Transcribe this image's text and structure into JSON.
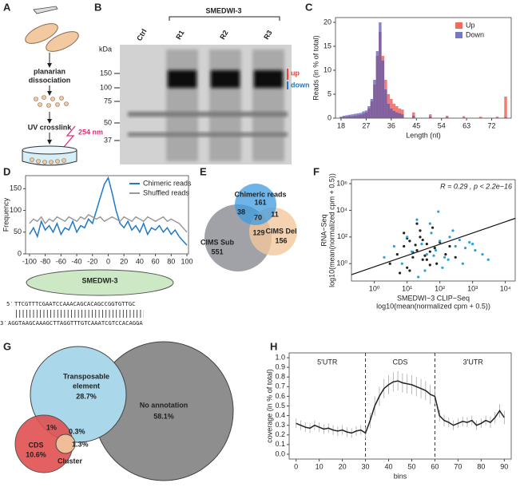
{
  "chart_data": [
    {
      "type": "bar",
      "y_label": "Reads (in % of total)",
      "x_label": "Length (nt)",
      "x": [
        18,
        19,
        20,
        21,
        22,
        23,
        24,
        25,
        26,
        27,
        28,
        29,
        30,
        31,
        32,
        33,
        34,
        35,
        36,
        37,
        38,
        39,
        40,
        44,
        50,
        56,
        62,
        68,
        74,
        77
      ],
      "series": [
        {
          "name": "Up",
          "color": "#e8463a",
          "values": [
            0.2,
            0.3,
            0.3,
            0.4,
            0.4,
            0.5,
            0.6,
            0.7,
            0.9,
            1.2,
            2,
            3.5,
            7,
            13,
            18,
            13,
            8,
            5,
            4,
            3,
            2.5,
            2,
            1.8,
            1.2,
            0.8,
            0.5,
            0.4,
            0.3,
            0.3,
            4.5
          ]
        },
        {
          "name": "Down",
          "color": "#5456b0",
          "values": [
            0.3,
            0.5,
            0.6,
            0.7,
            0.8,
            0.9,
            1.0,
            1.1,
            1.4,
            1.6,
            2.5,
            4,
            8,
            14,
            20,
            12,
            6,
            3,
            2,
            1.5,
            1.2,
            1.0,
            0.8,
            0.5,
            0.3,
            0.2,
            0.1,
            0.1,
            0.1,
            0.2
          ]
        }
      ],
      "xlim": [
        16,
        79
      ],
      "xticks": [
        18,
        27,
        36,
        45,
        54,
        63,
        72
      ],
      "ylim": [
        0,
        21
      ],
      "yticks": [
        0,
        5,
        10,
        15,
        20
      ],
      "legend": "top-right"
    },
    {
      "type": "line",
      "y_label": "Frequency",
      "x": [
        -100,
        -95,
        -90,
        -85,
        -80,
        -75,
        -70,
        -65,
        -60,
        -55,
        -50,
        -45,
        -40,
        -35,
        -30,
        -25,
        -20,
        -15,
        -10,
        -5,
        0,
        5,
        10,
        15,
        20,
        25,
        30,
        35,
        40,
        45,
        50,
        55,
        60,
        65,
        70,
        75,
        80,
        85,
        90,
        95,
        100
      ],
      "series": [
        {
          "name": "Chimeric reads",
          "color": "#1f78c8",
          "values": [
            45,
            60,
            40,
            75,
            55,
            65,
            50,
            70,
            45,
            60,
            55,
            75,
            50,
            65,
            60,
            80,
            70,
            100,
            130,
            160,
            175,
            140,
            100,
            70,
            60,
            75,
            55,
            65,
            50,
            70,
            45,
            60,
            55,
            65,
            50,
            60,
            45,
            55,
            40,
            30,
            20
          ]
        },
        {
          "name": "Shuffled reads",
          "color": "#9a9a9a",
          "values": [
            70,
            80,
            75,
            85,
            70,
            80,
            75,
            85,
            80,
            75,
            85,
            80,
            75,
            85,
            80,
            90,
            85,
            80,
            85,
            75,
            80,
            85,
            80,
            75,
            85,
            80,
            75,
            85,
            80,
            75,
            85,
            80,
            75,
            80,
            85,
            75,
            80,
            75,
            70,
            60,
            50
          ]
        }
      ],
      "xlim": [
        -105,
        102
      ],
      "xticks": [
        -100,
        -80,
        -60,
        -40,
        -20,
        0,
        20,
        40,
        60,
        80,
        100
      ],
      "ylim": [
        0,
        180
      ],
      "yticks": [
        0,
        50,
        100,
        150
      ],
      "legend": "top-right"
    },
    {
      "type": "scatter",
      "x_log": true,
      "y_log": true,
      "y_label": [
        "RNA−Seq",
        "log10(mean(normalized cpm + 0.5))"
      ],
      "x_label": [
        "SMEDWI−3 CLIP−Seq",
        "log10(mean(normalized cpm + 0.5))"
      ],
      "annotation": "R = 0.29 , p < 2.2e−16",
      "series": [
        {
          "color": "#222222",
          "x": [
            3,
            5,
            8,
            10,
            12,
            15,
            20,
            25,
            30,
            40,
            50,
            60,
            80,
            100,
            150,
            200,
            300,
            8,
            12,
            20,
            30,
            50,
            70,
            15,
            25,
            40,
            6,
            10,
            18,
            35
          ],
          "values": [
            1,
            5,
            20,
            0.5,
            50,
            3,
            10,
            100,
            2,
            30,
            8,
            500,
            1,
            40,
            5,
            20,
            3,
            200,
            0.3,
            1000,
            60,
            0.8,
            15,
            7,
            300,
            2,
            0.2,
            80,
            25,
            4
          ]
        },
        {
          "color": "#29a3d6",
          "x": [
            2,
            4,
            7,
            10,
            14,
            20,
            28,
            40,
            55,
            75,
            100,
            140,
            200,
            300,
            500,
            800,
            1200,
            2000,
            3000,
            50,
            120,
            250,
            600,
            35,
            90,
            180,
            400,
            1000,
            22,
            65
          ],
          "values": [
            3,
            20,
            1,
            100,
            8,
            2000,
            30,
            5,
            200,
            10,
            50,
            3,
            100,
            20,
            1,
            40,
            10,
            5,
            2,
            1000,
            0.5,
            300,
            15,
            0.3,
            8000,
            2,
            60,
            30,
            0.1,
            4
          ]
        }
      ],
      "trendline": {
        "x": [
          0.2,
          20000
        ],
        "y": [
          0.15,
          2500
        ]
      },
      "xlim": [
        0.2,
        20000
      ],
      "xticks": [
        {
          "value": 1,
          "label": "10⁰"
        },
        {
          "value": 10,
          "label": "10¹"
        },
        {
          "value": 100,
          "label": "10²"
        },
        {
          "value": 1000,
          "label": "10³"
        },
        {
          "value": 10000,
          "label": "10⁴"
        }
      ],
      "ylim": [
        0.05,
        2000000
      ],
      "yticks": [
        {
          "value": 1,
          "label": "10⁰"
        },
        {
          "value": 100,
          "label": "10²"
        },
        {
          "value": 10000,
          "label": "10⁴"
        },
        {
          "value": 1000000,
          "label": "10⁶"
        }
      ]
    },
    {
      "type": "line",
      "y_label": "coverage (in % of total)",
      "x_label": "bins",
      "x": [
        0,
        2,
        4,
        6,
        8,
        10,
        12,
        14,
        16,
        18,
        20,
        22,
        24,
        26,
        28,
        30,
        32,
        34,
        36,
        38,
        40,
        42,
        44,
        46,
        48,
        50,
        52,
        54,
        56,
        58,
        60,
        62,
        64,
        66,
        68,
        70,
        72,
        74,
        76,
        78,
        80,
        82,
        84,
        86,
        88,
        90
      ],
      "series": [
        {
          "color": "#222222",
          "values": [
            0.32,
            0.3,
            0.28,
            0.27,
            0.3,
            0.28,
            0.26,
            0.27,
            0.25,
            0.24,
            0.25,
            0.23,
            0.22,
            0.24,
            0.25,
            0.22,
            0.35,
            0.5,
            0.6,
            0.68,
            0.72,
            0.75,
            0.76,
            0.74,
            0.73,
            0.72,
            0.7,
            0.68,
            0.66,
            0.62,
            0.6,
            0.4,
            0.35,
            0.33,
            0.3,
            0.32,
            0.34,
            0.33,
            0.35,
            0.3,
            0.32,
            0.35,
            0.33,
            0.38,
            0.45,
            0.38
          ],
          "errors": [
            0.05,
            0.05,
            0.05,
            0.05,
            0.05,
            0.05,
            0.05,
            0.05,
            0.05,
            0.05,
            0.05,
            0.05,
            0.05,
            0.05,
            0.05,
            0.06,
            0.08,
            0.1,
            0.1,
            0.1,
            0.1,
            0.1,
            0.1,
            0.1,
            0.1,
            0.1,
            0.1,
            0.1,
            0.1,
            0.1,
            0.08,
            0.06,
            0.06,
            0.05,
            0.05,
            0.05,
            0.05,
            0.05,
            0.05,
            0.05,
            0.05,
            0.05,
            0.06,
            0.06,
            0.07,
            0.07
          ]
        }
      ],
      "dividers": [
        30,
        60
      ],
      "regions": [
        "5'UTR",
        "CDS",
        "3'UTR"
      ],
      "xlim": [
        -3,
        93
      ],
      "xticks": [
        0,
        10,
        20,
        30,
        40,
        50,
        60,
        70,
        80,
        90
      ],
      "ylim": [
        -0.05,
        1.05
      ],
      "yticks": [
        {
          "value": 0,
          "label": "0.0"
        },
        0.1,
        0.2,
        0.3,
        0.4,
        0.5,
        0.6,
        0.7,
        0.8,
        0.9,
        {
          "value": 1,
          "label": "1.0"
        }
      ]
    }
  ],
  "panels": {
    "letters": [
      "A",
      "B",
      "C",
      "D",
      "E",
      "F",
      "G",
      "H"
    ],
    "A": {
      "step1": [
        "planarian",
        "dissociation"
      ],
      "step2": "UV crosslink",
      "wavelength": "254 nm"
    },
    "B": {
      "protein": "SMEDWI-3",
      "unit": "kDa",
      "lanes": [
        "Ctrl",
        "R1",
        "R2",
        "R3"
      ],
      "markers": [
        "150",
        "100",
        "75",
        "50",
        "37"
      ],
      "up": "up",
      "down": "down"
    },
    "D": {
      "protein": "SMEDWI-3",
      "top_end": "5′",
      "top": "TTCGTTTCGAATCCAAACAGCACAGCCGGTGTTGC",
      "bottom_end": "3′",
      "bottom": "AGGTAAGCAAAGCTTAGGTTTGTCAAATCGTCCACAGGA"
    },
    "E": {
      "sets": [
        "Chimeric reads",
        "CIMS Sub",
        "CIMS Del"
      ],
      "only": [
        "161",
        "551",
        "156"
      ],
      "chim_sub": "38",
      "chim_del": "11",
      "sub_del": "129",
      "all": "70"
    },
    "G": {
      "te": [
        "Transposable",
        "element",
        "28.7%"
      ],
      "none": [
        "No annotation",
        "58.1%"
      ],
      "cds": [
        "CDS",
        "10.6%"
      ],
      "cluster": [
        "Cluster",
        "1.3%"
      ],
      "te_cds": "1%",
      "te_cluster": "0.3%"
    }
  }
}
